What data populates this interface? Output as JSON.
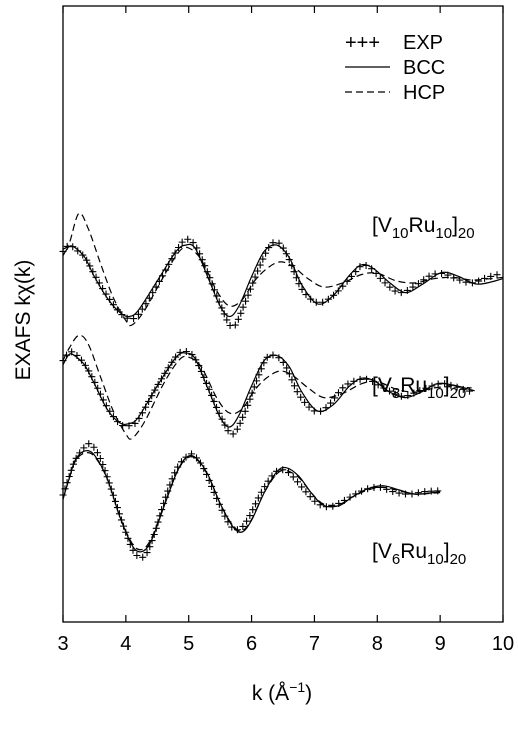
{
  "chart_data": {
    "type": "line",
    "xlabel": "k (Å⁻¹)",
    "ylabel": "EXAFS kχ(k)",
    "xlim": [
      3,
      10
    ],
    "x_ticks": [
      "3",
      "4",
      "5",
      "6",
      "7",
      "8",
      "9",
      "10"
    ],
    "legend": {
      "placement": "top-right",
      "entries": [
        {
          "symbol": "+++",
          "label": "EXP",
          "style": "markers"
        },
        {
          "symbol": "line",
          "label": "BCC",
          "style": "solid"
        },
        {
          "symbol": "dash",
          "label": "HCP",
          "style": "dashed"
        }
      ]
    },
    "panels": [
      {
        "label_base": "[V",
        "label_sub1": "10",
        "label_mid": "Ru",
        "label_sub2": "10",
        "label_end": "]",
        "label_sub3": "20",
        "offset": 2.6,
        "series": [
          {
            "name": "EXP",
            "x": [
              3.0,
              3.1,
              3.2,
              3.35,
              3.5,
              3.7,
              3.9,
              4.05,
              4.2,
              4.5,
              4.8,
              4.95,
              5.1,
              5.3,
              5.5,
              5.7,
              5.9,
              6.1,
              6.3,
              6.45,
              6.6,
              6.8,
              7.05,
              7.3,
              7.6,
              7.75,
              7.9,
              8.1,
              8.35,
              8.6,
              8.85,
              9.05,
              9.25,
              9.5,
              9.75,
              10.0
            ],
            "y": [
              0.7,
              0.85,
              0.75,
              0.55,
              0.15,
              -0.35,
              -0.75,
              -0.9,
              -0.8,
              -0.1,
              0.7,
              0.98,
              0.85,
              0.2,
              -0.55,
              -1.1,
              -0.5,
              0.25,
              0.85,
              0.88,
              0.5,
              -0.2,
              -0.52,
              -0.35,
              0.12,
              0.36,
              0.3,
              -0.02,
              -0.28,
              -0.12,
              0.13,
              0.17,
              0.05,
              -0.05,
              0.08,
              0.18
            ]
          },
          {
            "name": "BCC",
            "x": [
              3.0,
              3.1,
              3.2,
              3.35,
              3.5,
              3.7,
              3.9,
              4.05,
              4.2,
              4.5,
              4.8,
              4.95,
              5.1,
              5.3,
              5.5,
              5.65,
              5.8,
              6.0,
              6.2,
              6.4,
              6.6,
              6.8,
              7.05,
              7.3,
              7.55,
              7.75,
              7.95,
              8.2,
              8.45,
              8.7,
              8.95,
              9.1,
              9.3,
              9.6,
              10.0
            ],
            "y": [
              0.6,
              0.82,
              0.78,
              0.55,
              0.1,
              -0.4,
              -0.75,
              -0.85,
              -0.7,
              0.0,
              0.7,
              0.85,
              0.78,
              0.1,
              -0.6,
              -0.85,
              -0.6,
              0.1,
              0.7,
              0.85,
              0.55,
              -0.1,
              -0.55,
              -0.35,
              0.12,
              0.38,
              0.28,
              -0.05,
              -0.28,
              -0.1,
              0.15,
              0.2,
              0.1,
              -0.08,
              0.05
            ]
          },
          {
            "name": "HCP",
            "x": [
              3.0,
              3.1,
              3.25,
              3.4,
              3.6,
              3.8,
              4.0,
              4.1,
              4.3,
              4.6,
              4.85,
              5.0,
              5.2,
              5.45,
              5.65,
              5.85,
              6.05,
              6.25,
              6.45,
              6.65,
              6.9,
              7.15,
              7.45,
              7.75,
              8.0,
              8.3,
              8.6,
              8.9,
              9.2,
              9.5,
              9.8,
              10.0
            ],
            "y": [
              0.75,
              0.9,
              1.6,
              1.25,
              0.4,
              -0.4,
              -0.95,
              -1.05,
              -0.7,
              0.1,
              0.7,
              0.78,
              0.5,
              -0.25,
              -0.6,
              -0.45,
              0.0,
              0.3,
              0.45,
              0.35,
              0.05,
              -0.15,
              -0.05,
              0.15,
              0.18,
              0.0,
              -0.05,
              0.05,
              0.08,
              0.02,
              0.05,
              0.08
            ]
          }
        ]
      },
      {
        "label_base": "[V",
        "label_sub1": "8",
        "label_mid": "Ru",
        "label_sub2": "10",
        "label_end": "]",
        "label_sub3": "20",
        "offset": 0.0,
        "series": [
          {
            "name": "EXP",
            "x": [
              3.0,
              3.1,
              3.2,
              3.35,
              3.5,
              3.7,
              3.9,
              4.05,
              4.2,
              4.5,
              4.8,
              4.95,
              5.1,
              5.3,
              5.5,
              5.7,
              5.9,
              6.1,
              6.25,
              6.4,
              6.55,
              6.75,
              7.0,
              7.2,
              7.45,
              7.65,
              7.85,
              8.1,
              8.4,
              8.7,
              9.0,
              9.2,
              9.4,
              9.55
            ],
            "y": [
              0.7,
              0.9,
              0.85,
              0.6,
              0.2,
              -0.4,
              -0.8,
              -0.85,
              -0.7,
              0.1,
              0.8,
              0.92,
              0.75,
              0.1,
              -0.6,
              -1.05,
              -0.5,
              0.3,
              0.78,
              0.8,
              0.55,
              -0.1,
              -0.5,
              -0.4,
              0.05,
              0.22,
              0.25,
              0.05,
              -0.15,
              0.0,
              0.15,
              0.1,
              0.0,
              -0.05
            ]
          },
          {
            "name": "BCC",
            "x": [
              3.0,
              3.1,
              3.2,
              3.35,
              3.5,
              3.7,
              3.9,
              4.05,
              4.2,
              4.5,
              4.8,
              4.95,
              5.1,
              5.3,
              5.5,
              5.65,
              5.8,
              6.0,
              6.2,
              6.4,
              6.6,
              6.8,
              7.05,
              7.3,
              7.55,
              7.75,
              7.95,
              8.2,
              8.45,
              8.7,
              8.95,
              9.2,
              9.55
            ],
            "y": [
              0.6,
              0.85,
              0.8,
              0.58,
              0.15,
              -0.45,
              -0.78,
              -0.8,
              -0.65,
              0.1,
              0.78,
              0.88,
              0.75,
              0.05,
              -0.65,
              -0.88,
              -0.6,
              0.1,
              0.7,
              0.82,
              0.55,
              -0.05,
              -0.5,
              -0.35,
              0.08,
              0.28,
              0.22,
              -0.05,
              -0.18,
              -0.05,
              0.15,
              0.12,
              -0.02
            ]
          },
          {
            "name": "HCP",
            "x": [
              3.0,
              3.1,
              3.25,
              3.4,
              3.6,
              3.8,
              4.0,
              4.1,
              4.3,
              4.6,
              4.85,
              5.0,
              5.2,
              5.45,
              5.65,
              5.85,
              6.05,
              6.25,
              6.45,
              6.65,
              6.9,
              7.15,
              7.45,
              7.75,
              8.0,
              8.3,
              8.6,
              8.9,
              9.2,
              9.5
            ],
            "y": [
              0.7,
              1.0,
              1.3,
              1.1,
              0.3,
              -0.5,
              -1.05,
              -1.15,
              -0.75,
              0.15,
              0.72,
              0.78,
              0.55,
              -0.2,
              -0.55,
              -0.45,
              0.0,
              0.3,
              0.45,
              0.35,
              0.05,
              -0.18,
              -0.08,
              0.15,
              0.2,
              0.02,
              -0.05,
              0.05,
              0.08,
              0.05
            ]
          }
        ]
      },
      {
        "label_base": "[V",
        "label_sub1": "6",
        "label_mid": "Ru",
        "label_sub2": "10",
        "label_end": "]",
        "label_sub3": "20",
        "offset": -2.5,
        "series": [
          {
            "name": "EXP",
            "x": [
              3.0,
              3.1,
              3.2,
              3.35,
              3.45,
              3.6,
              3.8,
              4.0,
              4.15,
              4.3,
              4.45,
              4.6,
              4.8,
              5.0,
              5.1,
              5.25,
              5.45,
              5.65,
              5.8,
              5.95,
              6.15,
              6.35,
              6.5,
              6.65,
              6.85,
              7.05,
              7.25,
              7.45,
              7.65,
              7.85,
              8.05,
              8.25,
              8.5,
              8.75,
              9.0
            ],
            "y": [
              0.0,
              0.45,
              0.85,
              1.15,
              1.2,
              0.85,
              0.0,
              -0.9,
              -1.4,
              -1.45,
              -0.95,
              -0.2,
              0.6,
              0.95,
              0.92,
              0.6,
              -0.1,
              -0.7,
              -0.82,
              -0.55,
              0.05,
              0.5,
              0.6,
              0.45,
              0.1,
              -0.2,
              -0.28,
              -0.15,
              0.02,
              0.15,
              0.18,
              0.08,
              0.02,
              0.08,
              0.1
            ]
          },
          {
            "name": "BCC",
            "x": [
              3.0,
              3.1,
              3.2,
              3.35,
              3.5,
              3.7,
              3.9,
              4.1,
              4.25,
              4.4,
              4.6,
              4.8,
              4.95,
              5.1,
              5.3,
              5.5,
              5.7,
              5.85,
              6.0,
              6.2,
              6.4,
              6.55,
              6.75,
              6.95,
              7.15,
              7.4,
              7.6,
              7.85,
              8.1,
              8.35,
              8.6,
              8.85,
              9.0
            ],
            "y": [
              -0.1,
              0.4,
              0.85,
              1.05,
              0.95,
              0.4,
              -0.5,
              -1.2,
              -1.35,
              -1.1,
              -0.3,
              0.5,
              0.88,
              0.9,
              0.5,
              -0.2,
              -0.75,
              -0.88,
              -0.6,
              0.05,
              0.55,
              0.65,
              0.45,
              0.05,
              -0.25,
              -0.25,
              -0.05,
              0.15,
              0.22,
              0.12,
              0.02,
              0.05,
              0.08
            ]
          },
          {
            "name": "HCP",
            "x": [
              3.0,
              3.1,
              3.2,
              3.35,
              3.5,
              3.7,
              3.9,
              4.1,
              4.25,
              4.4,
              4.6,
              4.8,
              4.95,
              5.1,
              5.3,
              5.5,
              5.7,
              5.85,
              6.0,
              6.2,
              6.4,
              6.55,
              6.75,
              6.95,
              7.15,
              7.4,
              7.6,
              7.85,
              8.1,
              8.35,
              8.6,
              8.85,
              9.0
            ],
            "y": [
              -0.1,
              0.4,
              0.82,
              1.0,
              0.92,
              0.4,
              -0.5,
              -1.15,
              -1.3,
              -1.05,
              -0.28,
              0.5,
              0.85,
              0.88,
              0.48,
              -0.2,
              -0.72,
              -0.85,
              -0.58,
              0.05,
              0.5,
              0.58,
              0.42,
              0.05,
              -0.22,
              -0.22,
              -0.05,
              0.12,
              0.18,
              0.1,
              0.02,
              0.04,
              0.06
            ]
          }
        ]
      }
    ],
    "grid": false
  }
}
